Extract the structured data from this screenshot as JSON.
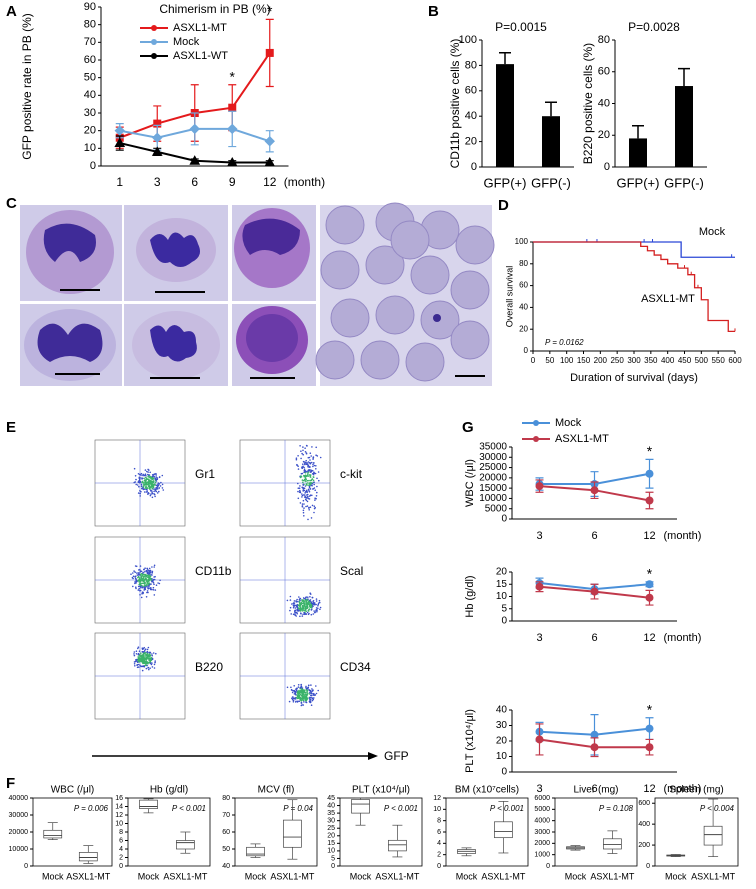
{
  "panel_letters": [
    "A",
    "B",
    "C",
    "D",
    "E",
    "F",
    "G"
  ],
  "flow": {
    "markers": [
      "Gr1",
      "c-kit",
      "CD11b",
      "Scal",
      "B220",
      "CD34"
    ],
    "x_label": "GFP"
  },
  "chart_data": [
    {
      "type": "line",
      "title": "Chimerism in PB (%)",
      "y_label": "GFP positive rate in PB (%)",
      "x_label": "(month)",
      "categories": [
        "1",
        "3",
        "6",
        "9",
        "12"
      ],
      "ylim": [
        0,
        90
      ],
      "yticks": [
        0,
        10,
        20,
        30,
        40,
        50,
        60,
        70,
        80,
        90
      ],
      "legend": "upper left",
      "series": [
        {
          "name": "ASXL1-MT",
          "color": "#e41a1c",
          "marker": "square",
          "values": [
            16,
            24,
            30,
            33,
            64
          ],
          "errors": [
            6,
            10,
            16,
            13,
            19
          ]
        },
        {
          "name": "Mock",
          "color": "#6fa8dc",
          "marker": "diamond",
          "values": [
            20,
            16,
            21,
            21,
            14
          ],
          "errors": [
            4,
            7,
            9,
            10,
            6
          ]
        },
        {
          "name": "ASXL1-WT",
          "color": "#000000",
          "marker": "triangle",
          "values": [
            13,
            8,
            3,
            2,
            2
          ],
          "errors": [
            4,
            2,
            1,
            1,
            1
          ]
        }
      ],
      "significance": [
        {
          "label": "*",
          "category": "9"
        },
        {
          "label": "*",
          "category": "12"
        }
      ]
    },
    {
      "type": "bar",
      "title": "P=0.0015",
      "y_label": "CD11b positive cells (%)",
      "categories": [
        "GFP(+)",
        "GFP(-)"
      ],
      "values": [
        81,
        40
      ],
      "errors": [
        9,
        11
      ],
      "color": "#000000",
      "ylim": [
        0,
        100
      ],
      "yticks": [
        0,
        20,
        40,
        60,
        80,
        100
      ]
    },
    {
      "type": "bar",
      "title": "P=0.0028",
      "y_label": "B220 positive cells (%)",
      "categories": [
        "GFP(+)",
        "GFP(-)"
      ],
      "values": [
        18,
        51
      ],
      "errors": [
        8,
        11
      ],
      "color": "#000000",
      "ylim": [
        0,
        80
      ],
      "yticks": [
        0,
        20,
        40,
        60,
        80
      ]
    },
    {
      "type": "survival",
      "x_label": "Duration of survival (days)",
      "y_label": "Overall survival",
      "p_label": "P = 0.0162",
      "xlim": [
        0,
        600
      ],
      "xticks": [
        0,
        50,
        100,
        150,
        200,
        250,
        300,
        350,
        400,
        450,
        500,
        550,
        600
      ],
      "ylim": [
        0,
        100
      ],
      "yticks": [
        0,
        20,
        40,
        60,
        80,
        100
      ],
      "series": [
        {
          "name": "Mock",
          "color": "#2b47d6",
          "x": [
            0,
            440,
            440,
            600
          ],
          "values": [
            100,
            100,
            86,
            86
          ],
          "censored": [
            160,
            190,
            330,
            355,
            590
          ]
        },
        {
          "name": "ASXL1-MT",
          "color": "#d42020",
          "x": [
            0,
            320,
            320,
            340,
            340,
            360,
            360,
            380,
            380,
            400,
            400,
            430,
            430,
            460,
            460,
            480,
            480,
            500,
            500,
            520,
            520,
            580,
            580,
            600
          ],
          "values": [
            100,
            100,
            96,
            96,
            92,
            92,
            88,
            88,
            84,
            84,
            80,
            80,
            76,
            76,
            70,
            70,
            58,
            58,
            47,
            47,
            28,
            28,
            18,
            18
          ],
          "censored": [
            450,
            470,
            490,
            600
          ]
        }
      ]
    },
    {
      "type": "line",
      "y_label": "WBC (/μl)",
      "x_label": "(month)",
      "categories": [
        "3",
        "6",
        "12"
      ],
      "ylim": [
        0,
        35000
      ],
      "yticks": [
        0,
        5000,
        10000,
        15000,
        20000,
        25000,
        30000,
        35000
      ],
      "legend": "top",
      "series": [
        {
          "name": "Mock",
          "color": "#4a90d9",
          "marker": "circle",
          "values": [
            17000,
            17000,
            22000
          ],
          "errors": [
            3000,
            6000,
            7000
          ]
        },
        {
          "name": "ASXL1-MT",
          "color": "#c0394b",
          "marker": "circle",
          "values": [
            16000,
            14000,
            9000
          ],
          "errors": [
            3000,
            4000,
            4000
          ]
        }
      ],
      "significance": [
        {
          "label": "*",
          "category": "12"
        }
      ]
    },
    {
      "type": "line",
      "y_label": "Hb (g/dl)",
      "x_label": "(month)",
      "categories": [
        "3",
        "6",
        "12"
      ],
      "ylim": [
        0,
        20
      ],
      "yticks": [
        0,
        5,
        10,
        15,
        20
      ],
      "series": [
        {
          "color": "#4a90d9",
          "marker": "circle",
          "values": [
            15.5,
            13,
            15
          ],
          "errors": [
            2,
            2,
            1
          ]
        },
        {
          "color": "#c0394b",
          "marker": "circle",
          "values": [
            14,
            12,
            9.5
          ],
          "errors": [
            2,
            3,
            3
          ]
        }
      ],
      "significance": [
        {
          "label": "*",
          "category": "12"
        }
      ]
    },
    {
      "type": "line",
      "y_label": "PLT (x10⁴/μl)",
      "x_label": "(month)",
      "categories": [
        "3",
        "6",
        "12"
      ],
      "ylim": [
        0,
        40
      ],
      "yticks": [
        0,
        10,
        20,
        30,
        40
      ],
      "series": [
        {
          "color": "#4a90d9",
          "marker": "circle",
          "values": [
            26,
            24,
            28
          ],
          "errors": [
            6,
            13,
            7
          ]
        },
        {
          "color": "#c0394b",
          "marker": "circle",
          "values": [
            21,
            16,
            16
          ],
          "errors": [
            10,
            6,
            5
          ]
        }
      ],
      "significance": [
        {
          "label": "*",
          "category": "12"
        }
      ]
    },
    {
      "type": "box",
      "title": "WBC (/μl)",
      "p_label": "P = 0.006",
      "categories": [
        "Mock",
        "ASXL1-MT"
      ],
      "ylim": [
        0,
        40000
      ],
      "yticks": [
        0,
        10000,
        20000,
        30000,
        40000
      ],
      "boxes": [
        {
          "min": 15500,
          "q1": 16500,
          "median": 18000,
          "q3": 21000,
          "max": 25500
        },
        {
          "min": 1500,
          "q1": 3000,
          "median": 5000,
          "q3": 8000,
          "max": 12000
        }
      ]
    },
    {
      "type": "box",
      "title": "Hb (g/dl)",
      "p_label": "P < 0.001",
      "categories": [
        "Mock",
        "ASXL1-MT"
      ],
      "ylim": [
        0,
        16
      ],
      "yticks": [
        0,
        2,
        4,
        6,
        8,
        10,
        12,
        14,
        16
      ],
      "boxes": [
        {
          "min": 12.5,
          "q1": 13.5,
          "median": 14,
          "q3": 15.5,
          "max": 15.8
        },
        {
          "min": 3,
          "q1": 4,
          "median": 5.5,
          "q3": 6,
          "max": 8
        }
      ]
    },
    {
      "type": "box",
      "title": "MCV (fl)",
      "p_label": "P = 0.04",
      "categories": [
        "Mock",
        "ASXL1-MT"
      ],
      "ylim": [
        40,
        80
      ],
      "yticks": [
        40,
        50,
        60,
        70,
        80
      ],
      "boxes": [
        {
          "min": 45,
          "q1": 46,
          "median": 47,
          "q3": 51,
          "max": 53
        },
        {
          "min": 44,
          "q1": 51,
          "median": 57,
          "q3": 67,
          "max": 79
        }
      ]
    },
    {
      "type": "box",
      "title": "PLT (x10⁴/μl)",
      "p_label": "P < 0.001",
      "categories": [
        "Mock",
        "ASXL1-MT"
      ],
      "ylim": [
        0,
        45
      ],
      "yticks": [
        0,
        5,
        10,
        15,
        20,
        25,
        30,
        35,
        40,
        45
      ],
      "boxes": [
        {
          "min": 27,
          "q1": 35,
          "median": 41,
          "q3": 44,
          "max": 45
        },
        {
          "min": 6,
          "q1": 10,
          "median": 14,
          "q3": 17,
          "max": 27
        }
      ]
    },
    {
      "type": "box",
      "title": "BM (x10⁷cells)",
      "p_label": "P < 0.001",
      "categories": [
        "Mock",
        "ASXL1-MT"
      ],
      "ylim": [
        0,
        12
      ],
      "yticks": [
        0,
        2,
        4,
        6,
        8,
        10,
        12
      ],
      "boxes": [
        {
          "min": 1.8,
          "q1": 2.2,
          "median": 2.6,
          "q3": 2.9,
          "max": 3.2
        },
        {
          "min": 2.3,
          "q1": 5,
          "median": 6.1,
          "q3": 7.8,
          "max": 11.4
        }
      ]
    },
    {
      "type": "box",
      "title": "Liver (mg)",
      "p_label": "P = 0.108",
      "categories": [
        "Mock",
        "ASXL1-MT"
      ],
      "ylim": [
        0,
        6000
      ],
      "yticks": [
        0,
        1000,
        2000,
        3000,
        4000,
        5000,
        6000
      ],
      "boxes": [
        {
          "min": 1400,
          "q1": 1500,
          "median": 1600,
          "q3": 1700,
          "max": 1800
        },
        {
          "min": 1100,
          "q1": 1500,
          "median": 1900,
          "q3": 2400,
          "max": 3100
        }
      ]
    },
    {
      "type": "box",
      "title": "Spleen (mg)",
      "p_label": "P < 0.004",
      "categories": [
        "Mock",
        "ASXL1-MT"
      ],
      "ylim": [
        0,
        650
      ],
      "yticks": [
        0,
        200,
        400,
        600
      ],
      "boxes": [
        {
          "min": 90,
          "q1": 95,
          "median": 100,
          "q3": 105,
          "max": 110
        },
        {
          "min": 90,
          "q1": 200,
          "median": 300,
          "q3": 380,
          "max": 640
        }
      ]
    }
  ]
}
